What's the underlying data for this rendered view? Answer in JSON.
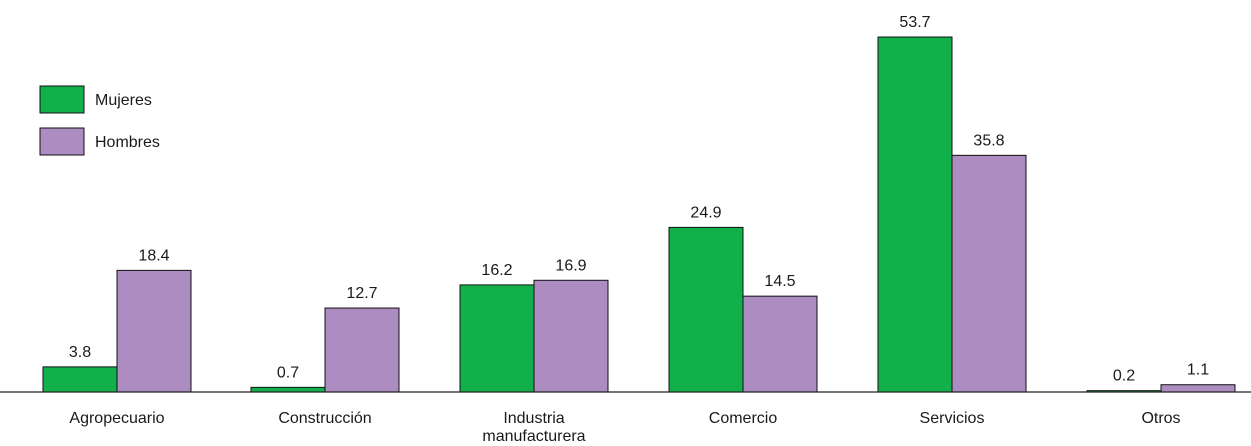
{
  "chart_data": {
    "type": "bar",
    "title": "",
    "xlabel": "",
    "ylabel": "",
    "ylim": [
      0,
      53.7
    ],
    "grid": false,
    "legend_position": "top-left",
    "categories": [
      "Agropecuario",
      "Construcción",
      "Industria\nmanufacturera",
      "Comercio",
      "Servicios",
      "Otros"
    ],
    "series": [
      {
        "name": "Mujeres",
        "color": "#12b04a",
        "values": [
          3.8,
          0.7,
          16.2,
          24.9,
          53.7,
          0.2
        ]
      },
      {
        "name": "Hombres",
        "color": "#ad8cc2",
        "values": [
          18.4,
          12.7,
          16.9,
          14.5,
          35.8,
          1.1
        ]
      }
    ]
  }
}
